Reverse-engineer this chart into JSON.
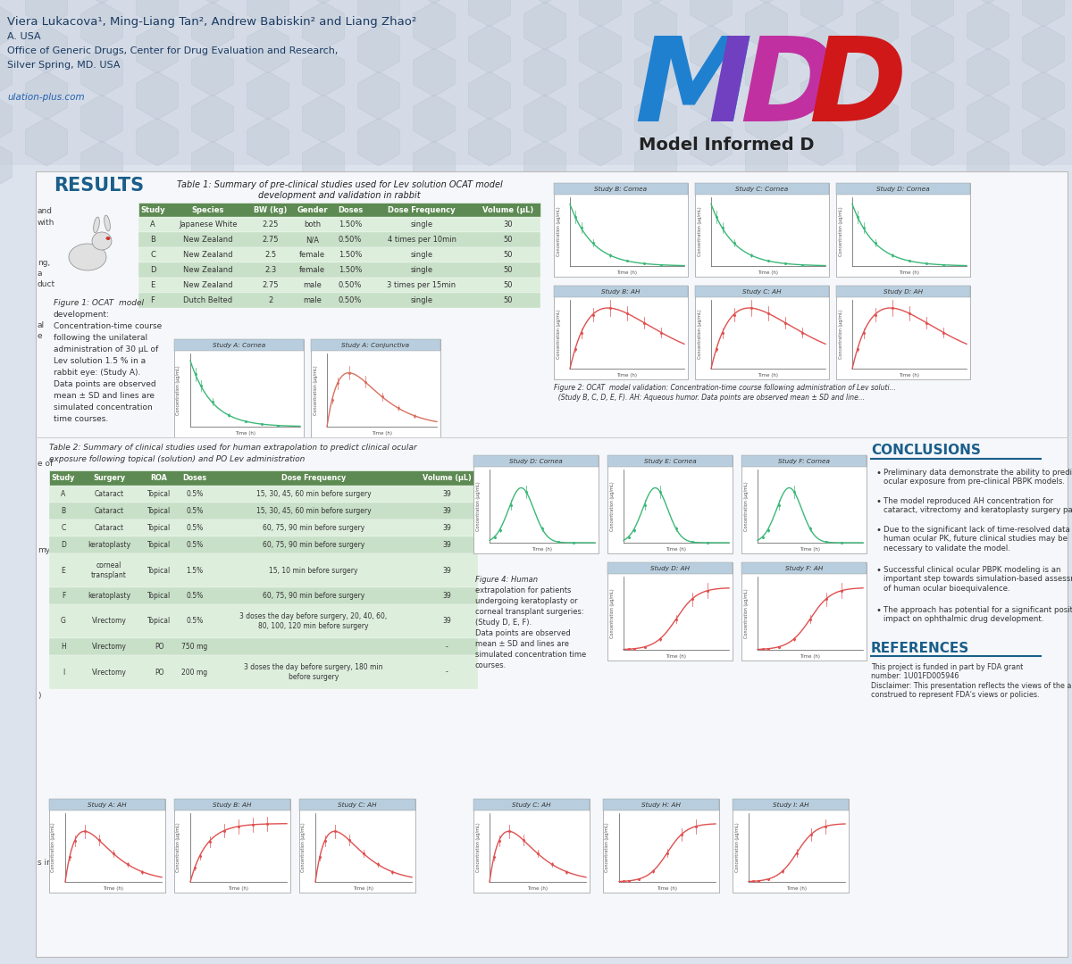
{
  "bg_color": "#dce3ec",
  "header_bg": "#d4dbe6",
  "authors": "Viera Lukacova¹, Ming-Liang Tan², Andrew Babiskin² and Liang Zhao²",
  "affil_ca": "A. USA",
  "affil2a": "Office of Generic Drugs, Center for Drug Evaluation and Research,",
  "affil2b": "Silver Spring, MD. USA",
  "website": "ulation-plus.com",
  "results_color": "#1a5e8a",
  "table1_header_bg": "#5d8a52",
  "table1_row_light": "#ddeedd",
  "table1_row_dark": "#c8dfc8",
  "table2_header_bg": "#5d8a52",
  "table2_row_light": "#ddeedd",
  "table2_row_dark": "#c8dfc8",
  "green_color": "#3cb878",
  "red_color": "#e05050",
  "salmon_color": "#d87060",
  "panel_header_bg": "#b8cede",
  "conclusions_color": "#1a5e8a",
  "content_bg": "#f5f7fa",
  "content_border": "#bbbbbb"
}
